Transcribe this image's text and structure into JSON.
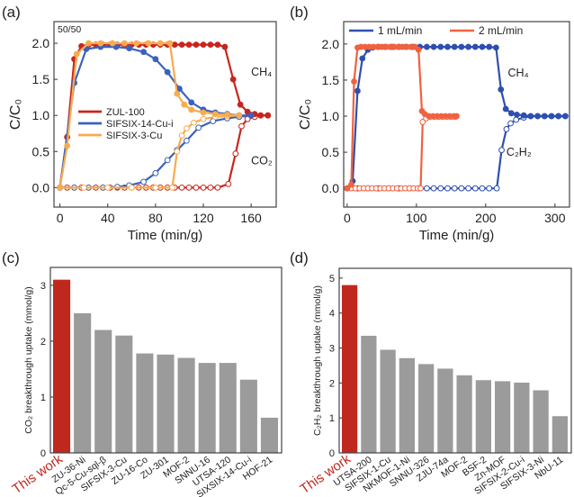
{
  "chart_data": [
    {
      "id": "a",
      "type": "line",
      "panel_label": "(a)",
      "xlabel": "Time  (min/g)",
      "ylabel": "C/C₀",
      "xlim": [
        -5,
        181
      ],
      "ylim": [
        -0.27,
        2.3
      ],
      "xticks": [
        0,
        40,
        80,
        120,
        160
      ],
      "yticks": [
        0.0,
        0.5,
        1.0,
        1.5,
        2.0
      ],
      "legend_placement": "center-left",
      "annotations": [
        {
          "text": "50/50",
          "at": "top-left"
        },
        {
          "text": "CH₄",
          "x": 160,
          "y": 1.55
        },
        {
          "text": "CO₂",
          "x": 160,
          "y": 0.32
        }
      ],
      "series": [
        {
          "name": "ZUL-100",
          "gas": "CH4",
          "filled": true,
          "color": "#c8251c",
          "legend": true,
          "x": [
            0,
            6,
            12,
            18,
            24,
            30,
            36,
            42,
            48,
            54,
            60,
            66,
            72,
            78,
            84,
            90,
            96,
            102,
            108,
            114,
            120,
            126,
            132,
            138,
            145,
            151,
            157,
            163,
            168,
            174
          ],
          "y": [
            0,
            0.7,
            1.78,
            1.96,
            1.98,
            1.98,
            1.98,
            1.98,
            1.98,
            1.98,
            1.98,
            1.98,
            1.98,
            1.98,
            1.98,
            1.98,
            1.98,
            1.98,
            1.98,
            1.98,
            1.98,
            1.98,
            1.98,
            1.95,
            1.5,
            1.15,
            1.05,
            1.02,
            1.0,
            1.0
          ]
        },
        {
          "name": "ZUL-100",
          "gas": "CO2",
          "filled": false,
          "color": "#c8251c",
          "legend": false,
          "x": [
            0,
            6,
            12,
            18,
            24,
            30,
            36,
            42,
            48,
            54,
            60,
            66,
            72,
            78,
            84,
            90,
            96,
            102,
            108,
            114,
            120,
            126,
            132,
            141,
            147,
            152,
            157,
            163,
            168,
            174
          ],
          "y": [
            0,
            0,
            0,
            0,
            0,
            0,
            0,
            0,
            0,
            0,
            0,
            0,
            0,
            0,
            0,
            0,
            0,
            0,
            0,
            0,
            0,
            0,
            0,
            0.05,
            0.47,
            0.85,
            0.95,
            0.98,
            1.0,
            1.0
          ]
        },
        {
          "name": "SIFSIX-14-Cu-i",
          "gas": "CH4",
          "filled": true,
          "color": "#3b62bd",
          "legend": true,
          "x": [
            0,
            12,
            22,
            34,
            47,
            58,
            70,
            80,
            90,
            100,
            110,
            120,
            130,
            140,
            150,
            160
          ],
          "y": [
            0,
            1.45,
            1.92,
            1.95,
            1.95,
            1.93,
            1.88,
            1.78,
            1.6,
            1.37,
            1.18,
            1.08,
            1.04,
            1.02,
            1.0,
            1.0
          ]
        },
        {
          "name": "SIFSIX-14-Cu-i",
          "gas": "CO2",
          "filled": false,
          "color": "#3b62bd",
          "legend": false,
          "x": [
            0,
            12,
            24,
            36,
            48,
            58,
            70,
            80,
            90,
            98,
            106,
            116,
            128,
            140,
            150,
            160
          ],
          "y": [
            0,
            0,
            0,
            0,
            0.01,
            0.03,
            0.08,
            0.2,
            0.38,
            0.52,
            0.65,
            0.83,
            0.92,
            0.96,
            0.98,
            1.0
          ]
        },
        {
          "name": "SIFSIX-3-Cu",
          "gas": "CH4",
          "filled": true,
          "color": "#f6ac4f",
          "legend": true,
          "x": [
            0,
            6,
            14,
            24,
            34,
            44,
            54,
            64,
            74,
            84,
            92,
            98,
            104,
            110,
            120,
            130,
            140,
            150
          ],
          "y": [
            0,
            0.58,
            1.85,
            2.0,
            2.0,
            2.0,
            2.0,
            2.0,
            2.0,
            2.0,
            2.0,
            1.3,
            1.15,
            1.08,
            1.04,
            1.02,
            1.01,
            1.0
          ]
        },
        {
          "name": "SIFSIX-3-Cu",
          "gas": "CO2",
          "filled": false,
          "color": "#f6ac4f",
          "legend": false,
          "x": [
            0,
            20,
            40,
            60,
            80,
            94,
            98,
            102,
            106,
            112,
            120,
            130,
            140,
            150
          ],
          "y": [
            0,
            0,
            0,
            0,
            0,
            0,
            0.5,
            0.72,
            0.82,
            0.9,
            0.95,
            0.98,
            0.99,
            1.0
          ]
        }
      ]
    },
    {
      "id": "b",
      "type": "line",
      "panel_label": "(b)",
      "xlabel": "Time  (min/g)",
      "ylabel": "C/C₀",
      "xlim": [
        -5,
        321
      ],
      "ylim": [
        -0.26,
        2.31
      ],
      "xticks": [
        0,
        100,
        200,
        300
      ],
      "yticks": [
        0.0,
        0.5,
        1.0,
        1.5,
        2.0
      ],
      "legend_placement": "top",
      "annotations": [
        {
          "text": "CH₄",
          "x": 232,
          "y": 1.55
        },
        {
          "text": "C₂H₂",
          "x": 230,
          "y": 0.45
        }
      ],
      "series": [
        {
          "name": "1 mL/min",
          "gas": "CH4",
          "filled": true,
          "color": "#2f4fb0",
          "legend": true,
          "x": [
            0,
            8,
            15,
            22,
            30,
            37,
            45,
            55,
            65,
            75,
            85,
            95,
            105,
            115,
            125,
            135,
            145,
            155,
            165,
            175,
            185,
            195,
            205,
            215,
            222,
            229,
            237,
            245,
            255,
            265,
            275,
            285,
            295,
            305,
            315
          ],
          "y": [
            0,
            0.1,
            1.35,
            1.8,
            1.92,
            1.95,
            1.96,
            1.96,
            1.96,
            1.96,
            1.96,
            1.96,
            1.96,
            1.96,
            1.96,
            1.96,
            1.96,
            1.96,
            1.96,
            1.96,
            1.96,
            1.96,
            1.96,
            1.95,
            1.37,
            1.1,
            1.04,
            1.02,
            1.01,
            1.0,
            1.0,
            1.0,
            1.0,
            1.0,
            1.0
          ]
        },
        {
          "name": "1 mL/min",
          "gas": "C2H2",
          "filled": false,
          "color": "#2f4fb0",
          "legend": false,
          "x": [
            0,
            15,
            30,
            45,
            60,
            75,
            90,
            105,
            115,
            125,
            135,
            145,
            155,
            165,
            175,
            185,
            195,
            205,
            216,
            223,
            230,
            236,
            244,
            255,
            265,
            275,
            285,
            295,
            305,
            315
          ],
          "y": [
            0,
            0,
            0,
            0,
            0,
            0,
            0,
            0,
            0,
            0,
            0,
            0,
            0,
            0,
            0,
            0,
            0,
            0,
            0,
            0.53,
            0.82,
            0.9,
            0.95,
            0.98,
            1.0,
            1.0,
            1.0,
            1.0,
            1.0,
            1.0
          ]
        },
        {
          "name": "2 mL/min",
          "gas": "CH4",
          "filled": true,
          "color": "#f0623f",
          "legend": true,
          "x": [
            0,
            6,
            10,
            15,
            20,
            26,
            32,
            38,
            44,
            50,
            56,
            62,
            68,
            74,
            80,
            86,
            92,
            98,
            103,
            108,
            112,
            118,
            124,
            130,
            136,
            142,
            148,
            154,
            158
          ],
          "y": [
            0,
            0.05,
            1.48,
            1.95,
            1.96,
            1.96,
            1.96,
            1.96,
            1.96,
            1.96,
            1.96,
            1.96,
            1.96,
            1.96,
            1.96,
            1.96,
            1.96,
            1.96,
            1.92,
            1.07,
            1.03,
            1.0,
            1.0,
            1.0,
            1.0,
            1.0,
            1.0,
            1.0,
            1.0
          ]
        },
        {
          "name": "2 mL/min",
          "gas": "C2H2",
          "filled": false,
          "color": "#f0623f",
          "legend": false,
          "x": [
            0,
            6,
            12,
            18,
            24,
            30,
            36,
            42,
            48,
            54,
            60,
            66,
            72,
            78,
            84,
            90,
            96,
            102,
            106,
            109,
            114,
            120,
            126,
            132,
            138,
            144,
            150,
            156
          ],
          "y": [
            0,
            0,
            0,
            0,
            0,
            0,
            0,
            0,
            0,
            0,
            0,
            0,
            0,
            0,
            0,
            0,
            0,
            0,
            0,
            0.92,
            0.97,
            0.99,
            0.99,
            0.99,
            0.99,
            0.99,
            0.99,
            0.99
          ]
        }
      ]
    },
    {
      "id": "c",
      "type": "bar",
      "panel_label": "(c)",
      "ylabel": "CO₂ breakthrough uptake (mmol/g)",
      "ylim": [
        0,
        3.32
      ],
      "yticks": [
        0,
        1,
        2,
        3
      ],
      "highlight_color": "#c0281e",
      "bar_color": "#9b9b9b",
      "categories": [
        "This work",
        "ZU-36-Ni",
        "Qc-5-Cu-sql-β",
        "SIFSIX-3-Cu",
        "ZU-16-Co",
        "ZU-301",
        "MOF-2",
        "SNNU-16",
        "UTSA-120",
        "SIXSIX-14-Cu-i",
        "HOF-21"
      ],
      "values": [
        3.1,
        2.5,
        2.2,
        2.1,
        1.78,
        1.76,
        1.7,
        1.61,
        1.61,
        1.31,
        0.63
      ]
    },
    {
      "id": "d",
      "type": "bar",
      "panel_label": "(d)",
      "ylabel": "C₂H₂ breakthrough uptake (mmol/g)",
      "ylim": [
        0,
        5.28
      ],
      "yticks": [
        0,
        1,
        2,
        3,
        4,
        5
      ],
      "highlight_color": "#c0281e",
      "bar_color": "#9b9b9b",
      "categories": [
        "This work",
        "UTSA-200",
        "SIFSIX-1-Cu",
        "NKMOF-1-Ni",
        "SNNU-326",
        "ZJU-74a",
        "MOF-2",
        "BSF-2",
        "Zn-MOF",
        "SIFSIX-2-Cu-i",
        "SIFSIX-3-Ni",
        "NbU-11"
      ],
      "values": [
        4.8,
        3.35,
        2.95,
        2.71,
        2.54,
        2.41,
        2.22,
        2.08,
        2.05,
        2.01,
        1.79,
        1.05
      ]
    }
  ]
}
